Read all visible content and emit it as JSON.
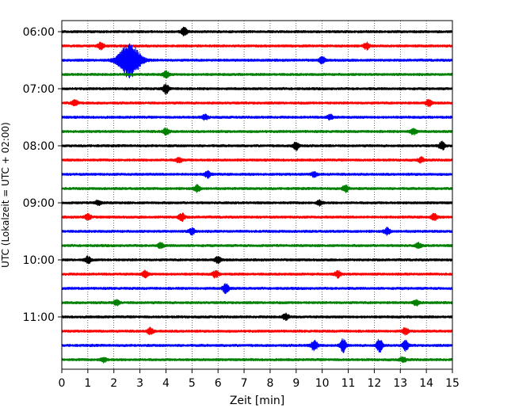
{
  "chart_data": {
    "type": "line",
    "title": "",
    "xlabel": "Zeit  [min]",
    "ylabel": "UTC (Lokalzeit = UTC + 02:00)",
    "xlim": [
      0,
      15
    ],
    "x_ticks": [
      "0",
      "1",
      "2",
      "3",
      "4",
      "5",
      "6",
      "7",
      "8",
      "9",
      "10",
      "11",
      "12",
      "13",
      "14",
      "15"
    ],
    "y_ticks": [
      "06:00",
      "07:00",
      "08:00",
      "09:00",
      "10:00",
      "11:00"
    ],
    "grid": "vertical-dotted",
    "legend": "none",
    "trace_interval_minutes": 15,
    "trace_colors": [
      "#000000",
      "#ff0000",
      "#0000ff",
      "#008000"
    ],
    "traces": [
      {
        "start": "06:00",
        "color": "#000000",
        "events": [
          {
            "t": 4.7,
            "amp": 5
          }
        ]
      },
      {
        "start": "06:15",
        "color": "#ff0000",
        "events": [
          {
            "t": 1.5,
            "amp": 4
          },
          {
            "t": 11.7,
            "amp": 4
          }
        ]
      },
      {
        "start": "06:30",
        "color": "#0000ff",
        "events": [
          {
            "t": 2.6,
            "amp": 22
          },
          {
            "t": 10.0,
            "amp": 4
          }
        ]
      },
      {
        "start": "06:45",
        "color": "#008000",
        "events": [
          {
            "t": 4.0,
            "amp": 4
          }
        ]
      },
      {
        "start": "07:00",
        "color": "#000000",
        "events": [
          {
            "t": 4.0,
            "amp": 6
          }
        ]
      },
      {
        "start": "07:15",
        "color": "#ff0000",
        "events": [
          {
            "t": 0.5,
            "amp": 4
          },
          {
            "t": 14.1,
            "amp": 4
          }
        ]
      },
      {
        "start": "07:30",
        "color": "#0000ff",
        "events": [
          {
            "t": 5.5,
            "amp": 3
          },
          {
            "t": 10.3,
            "amp": 3
          }
        ]
      },
      {
        "start": "07:45",
        "color": "#008000",
        "events": [
          {
            "t": 4.0,
            "amp": 4
          },
          {
            "t": 13.5,
            "amp": 4
          }
        ]
      },
      {
        "start": "08:00",
        "color": "#000000",
        "events": [
          {
            "t": 9.0,
            "amp": 5
          },
          {
            "t": 14.6,
            "amp": 5
          }
        ]
      },
      {
        "start": "08:15",
        "color": "#ff0000",
        "events": [
          {
            "t": 4.5,
            "amp": 3
          },
          {
            "t": 13.8,
            "amp": 3
          }
        ]
      },
      {
        "start": "08:30",
        "color": "#0000ff",
        "events": [
          {
            "t": 5.6,
            "amp": 4
          },
          {
            "t": 9.7,
            "amp": 3
          }
        ]
      },
      {
        "start": "08:45",
        "color": "#008000",
        "events": [
          {
            "t": 5.2,
            "amp": 4
          },
          {
            "t": 10.9,
            "amp": 4
          }
        ]
      },
      {
        "start": "09:00",
        "color": "#000000",
        "events": [
          {
            "t": 1.4,
            "amp": 3
          },
          {
            "t": 9.9,
            "amp": 3
          }
        ]
      },
      {
        "start": "09:15",
        "color": "#ff0000",
        "events": [
          {
            "t": 1.0,
            "amp": 4
          },
          {
            "t": 4.6,
            "amp": 5
          },
          {
            "t": 14.3,
            "amp": 4
          }
        ]
      },
      {
        "start": "09:30",
        "color": "#0000ff",
        "events": [
          {
            "t": 5.0,
            "amp": 4
          },
          {
            "t": 12.5,
            "amp": 4
          }
        ]
      },
      {
        "start": "09:45",
        "color": "#008000",
        "events": [
          {
            "t": 3.8,
            "amp": 3
          },
          {
            "t": 13.7,
            "amp": 3
          }
        ]
      },
      {
        "start": "10:00",
        "color": "#000000",
        "events": [
          {
            "t": 1.0,
            "amp": 4
          },
          {
            "t": 6.0,
            "amp": 4
          }
        ]
      },
      {
        "start": "10:15",
        "color": "#ff0000",
        "events": [
          {
            "t": 3.2,
            "amp": 4
          },
          {
            "t": 5.9,
            "amp": 4
          },
          {
            "t": 10.6,
            "amp": 4
          }
        ]
      },
      {
        "start": "10:30",
        "color": "#0000ff",
        "events": [
          {
            "t": 6.3,
            "amp": 6
          }
        ]
      },
      {
        "start": "10:45",
        "color": "#008000",
        "events": [
          {
            "t": 2.1,
            "amp": 3
          },
          {
            "t": 13.6,
            "amp": 3
          }
        ]
      },
      {
        "start": "11:00",
        "color": "#000000",
        "events": [
          {
            "t": 8.6,
            "amp": 4
          }
        ]
      },
      {
        "start": "11:15",
        "color": "#ff0000",
        "events": [
          {
            "t": 3.4,
            "amp": 4
          },
          {
            "t": 13.2,
            "amp": 4
          }
        ]
      },
      {
        "start": "11:30",
        "color": "#0000ff",
        "events": [
          {
            "t": 9.7,
            "amp": 7
          },
          {
            "t": 10.8,
            "amp": 8
          },
          {
            "t": 12.2,
            "amp": 8
          },
          {
            "t": 13.2,
            "amp": 6
          }
        ]
      },
      {
        "start": "11:45",
        "color": "#008000",
        "events": [
          {
            "t": 1.6,
            "amp": 3
          },
          {
            "t": 13.1,
            "amp": 3
          }
        ]
      }
    ]
  }
}
